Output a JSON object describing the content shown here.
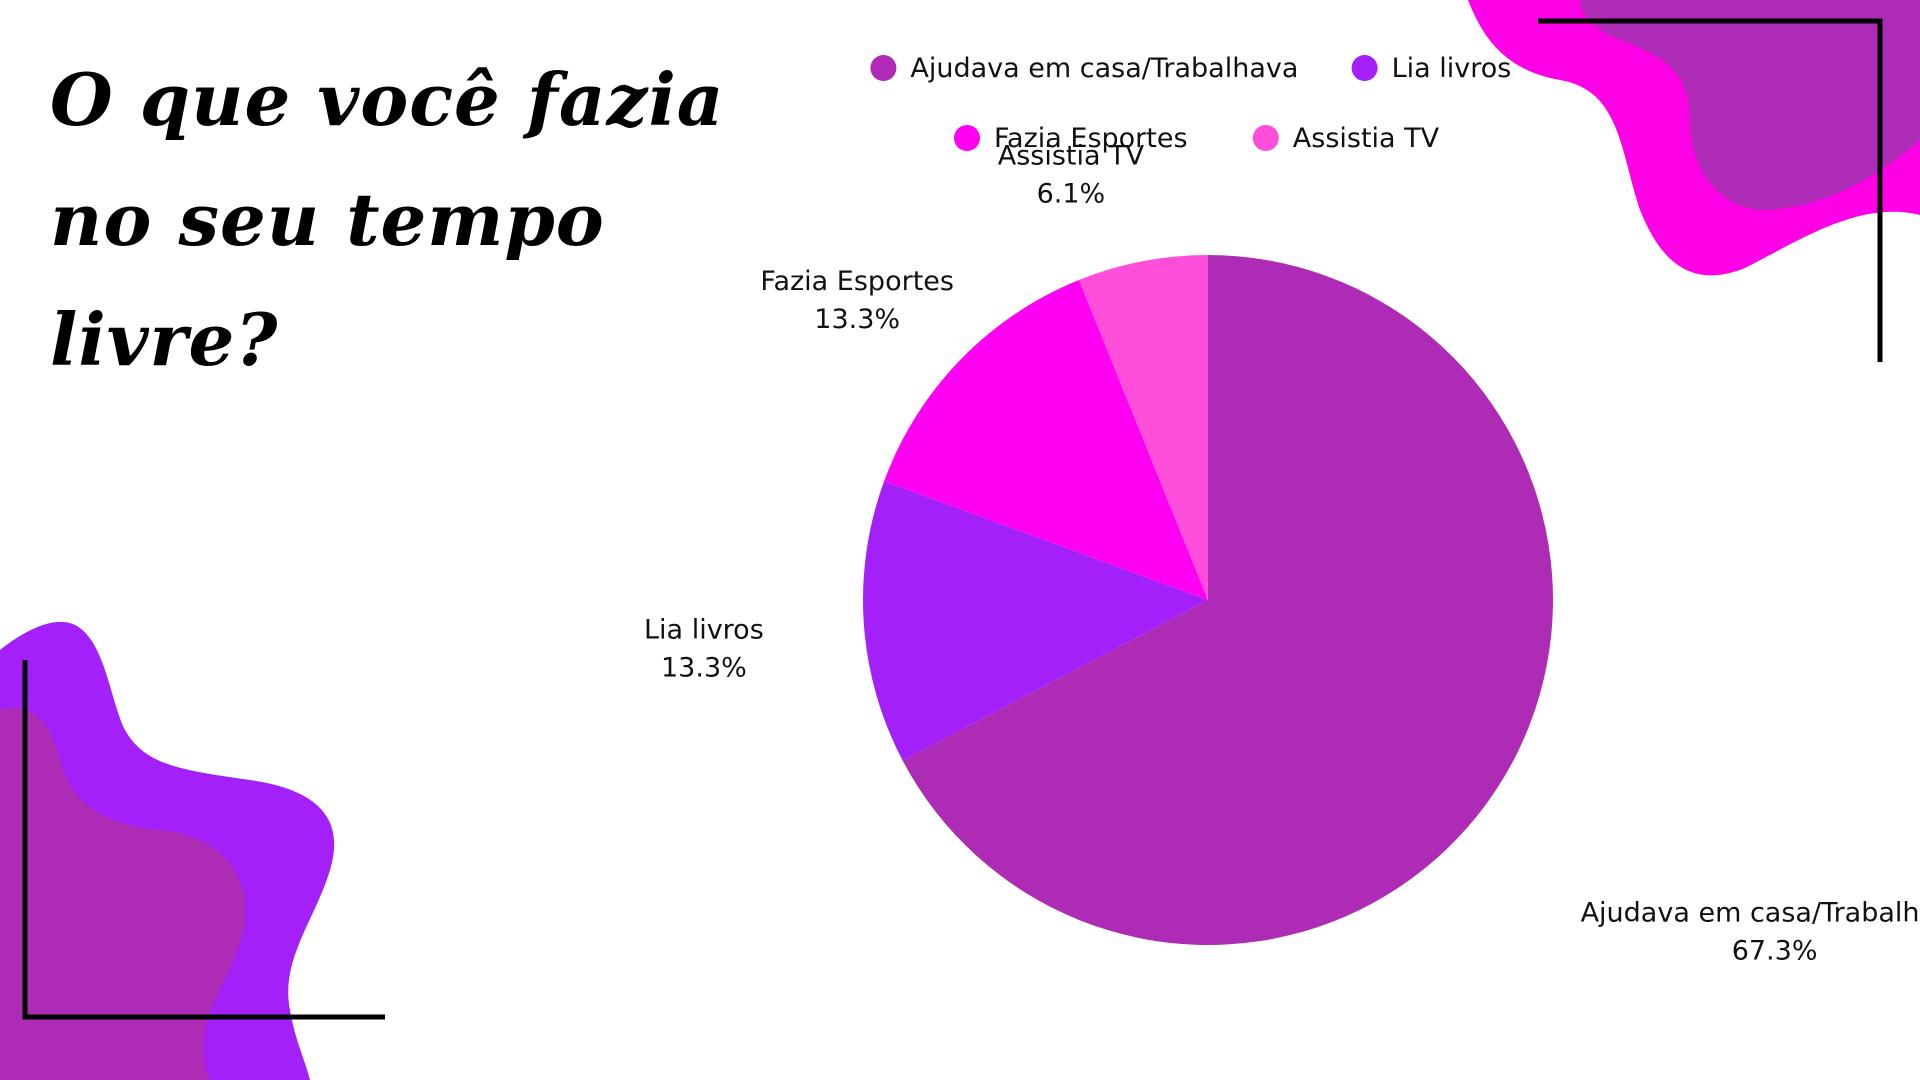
{
  "title": "O que você fazia no seu tempo livre?",
  "chart_data": {
    "type": "pie",
    "title": "O que você fazia no seu tempo livre?",
    "legend_position": "top",
    "categories": [
      "Ajudava em casa/Trabalhava",
      "Lia livros",
      "Fazia Esportes",
      "Assistia TV"
    ],
    "values": [
      67.3,
      13.3,
      13.3,
      6.1
    ],
    "value_labels": [
      "67.3%",
      "13.3%",
      "13.3%",
      "6.1%"
    ],
    "colors": [
      "#AE2BB5",
      "#A420F9",
      "#FF00F2",
      "#FF4FDA"
    ]
  },
  "decor_colors": {
    "pink": "#FF00E6",
    "purple": "#A420F9",
    "dark_purple": "#AE2BB5",
    "frame": "#000000"
  }
}
